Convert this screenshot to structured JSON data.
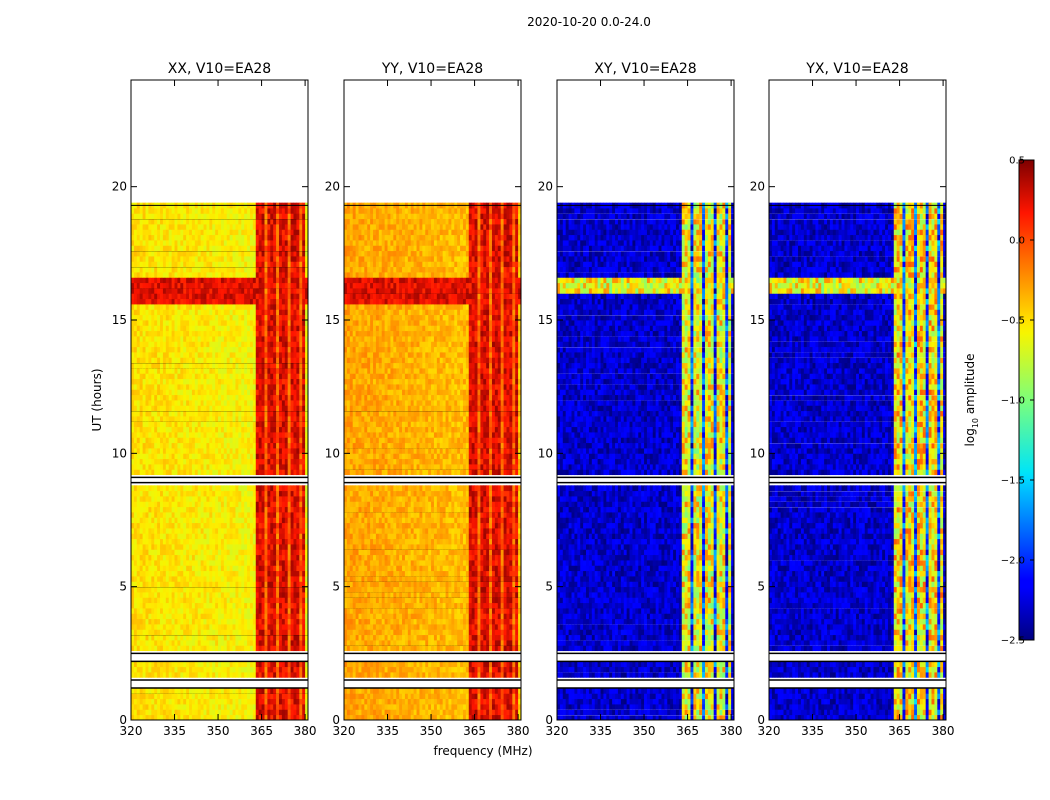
{
  "figure_title": "2020-10-20 0.0-24.0",
  "colorbar": {
    "label_prefix": "log",
    "label_sub": "10",
    "label_suffix": " amplitude",
    "range": [
      -2.5,
      0.5
    ],
    "ticks": [
      "0.5",
      "0.0",
      "−0.5",
      "−1.0",
      "−1.5",
      "−2.0",
      "−2.5"
    ],
    "tick_values": [
      0.5,
      0.0,
      -0.5,
      -1.0,
      -1.5,
      -2.0,
      -2.5
    ]
  },
  "chart_data": {
    "type": "heatmap",
    "xlabel": "frequency (MHz)",
    "ylabel": "UT (hours)",
    "xlim": [
      320,
      381
    ],
    "ylim": [
      0,
      24
    ],
    "x_ticks": [
      "320",
      "335",
      "350",
      "365",
      "380"
    ],
    "x_tick_values": [
      320,
      335,
      350,
      365,
      380
    ],
    "y_ticks": [
      "0",
      "5",
      "10",
      "15",
      "20"
    ],
    "y_tick_values": [
      0,
      5,
      10,
      15,
      20
    ],
    "data_time_range_hours": [
      0,
      19.3
    ],
    "flagged_time_ranges_hours": [
      [
        8.9,
        9.1
      ],
      [
        1.2,
        1.5
      ],
      [
        2.2,
        2.5
      ]
    ],
    "bright_band_mhz": [
      363,
      380
    ],
    "panels": [
      {
        "title": "XX, V10=EA28",
        "kind": "parallel",
        "background_level": -0.5,
        "band_level": 0.4
      },
      {
        "title": "YY, V10=EA28",
        "kind": "parallel",
        "background_level": -0.3,
        "band_level": 0.4
      },
      {
        "title": "XY, V10=EA28",
        "kind": "cross",
        "background_level": -2.3,
        "band_level": -0.2
      },
      {
        "title": "YX, V10=EA28",
        "kind": "cross",
        "background_level": -2.3,
        "band_level": -0.1
      }
    ]
  }
}
